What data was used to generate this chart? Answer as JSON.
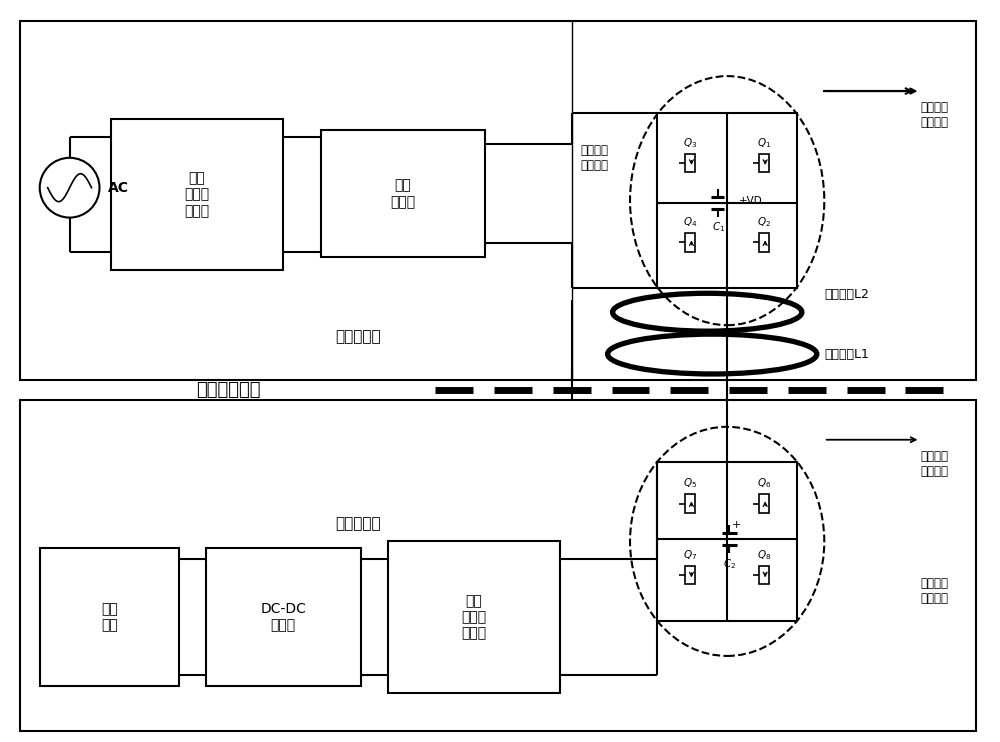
{
  "bg": "#ffffff",
  "lc": "#000000",
  "lw": 1.5,
  "box1": "第一\n整流滤\n波电路",
  "box2": "高频\n逆变器",
  "box3_label": "第一串联\n谐振电路",
  "box4_label": "第一电子\n电容电路",
  "coil1": "发射线圈L1",
  "coil2": "接收线圈L2",
  "box5_label": "第二电子\n电容电路",
  "box6_label": "第二串联\n谐振电路",
  "box7": "第二\n整流滤\n波电路",
  "box8": "DC-DC\n变换器",
  "box9": "电池\n负载",
  "ac": "AC",
  "top_label": "基建侧部分",
  "bot_label": "车载侧部分",
  "sep_label": "可分离变压器",
  "c1_label": "C₁",
  "vd_label": "+VD",
  "c2_label": "C₂"
}
